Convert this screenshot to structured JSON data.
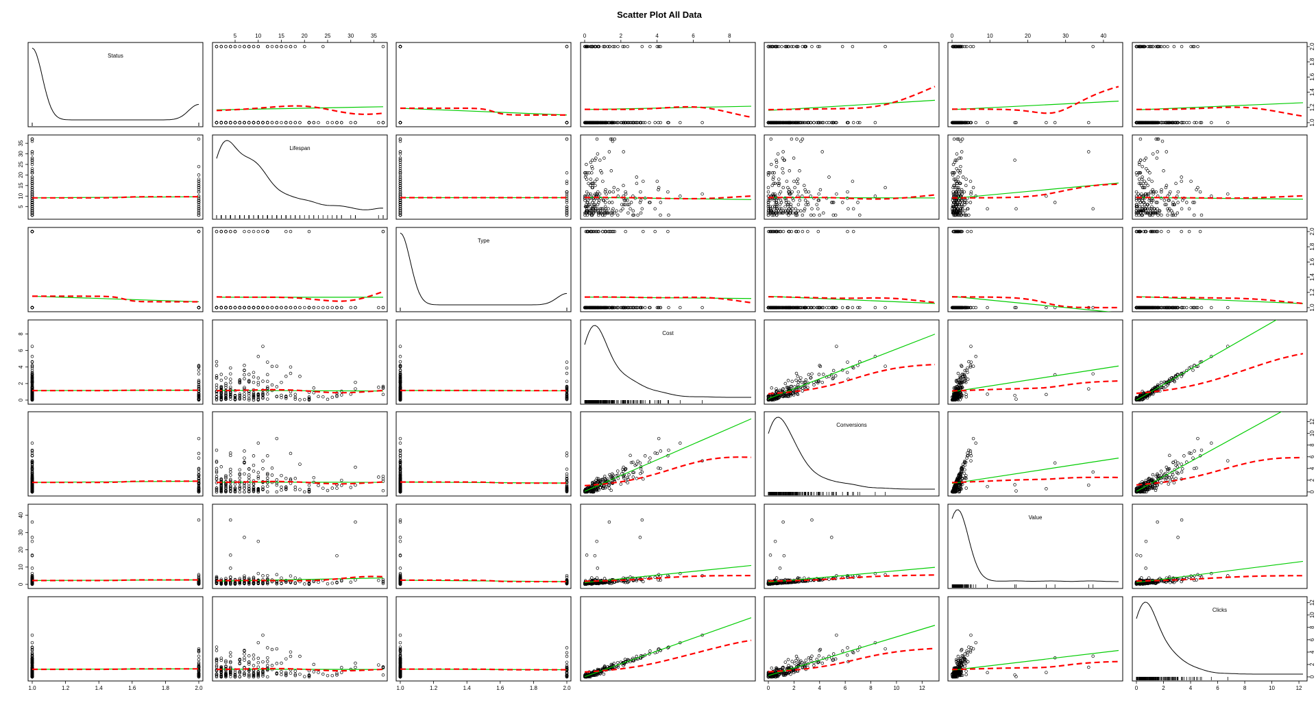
{
  "chart_data": {
    "type": "scatter",
    "title": "Scatter Plot All Data",
    "variables": [
      "Status",
      "Lifespan",
      "Type",
      "Cost",
      "Conversions",
      "Value",
      "Clicks"
    ],
    "axis_ranges": {
      "Status": [
        1,
        2
      ],
      "Lifespan": [
        1,
        37
      ],
      "Type": [
        1,
        2
      ],
      "Cost": [
        0,
        9.2
      ],
      "Conversions": [
        0,
        13
      ],
      "Value": [
        0,
        44
      ],
      "Clicks": [
        0,
        12.3
      ]
    },
    "top_ticks": {
      "Lifespan": [
        5,
        10,
        15,
        20,
        25,
        30,
        35
      ],
      "Cost": [
        0,
        2,
        4,
        6,
        8
      ],
      "Value": [
        0,
        10,
        20,
        30,
        40
      ]
    },
    "bottom_ticks": {
      "Status": [
        "1.0",
        "1.2",
        "1.4",
        "1.6",
        "1.8",
        "2.0"
      ],
      "Type": [
        "1.0",
        "1.2",
        "1.4",
        "1.6",
        "1.8",
        "2.0"
      ],
      "Conversions": [
        "0",
        "2",
        "4",
        "6",
        "8",
        "10",
        "12"
      ],
      "Clicks": [
        "0",
        "2",
        "4",
        "6",
        "8",
        "10",
        "12"
      ]
    },
    "left_ticks": {
      "Lifespan": [
        "5",
        "10",
        "15",
        "20",
        "25",
        "30",
        "35"
      ],
      "Cost": [
        "0",
        "2",
        "4",
        "6",
        "8"
      ],
      "Value": [
        "0",
        "10",
        "20",
        "30",
        "40"
      ]
    },
    "right_ticks": {
      "Status": [
        "1.0",
        "1.2",
        "1.4",
        "1.6",
        "1.8",
        "2.0"
      ],
      "Type": [
        "1.0",
        "1.2",
        "1.4",
        "1.6",
        "1.8",
        "2.0"
      ],
      "Conversions": [
        "0",
        "2",
        "4",
        "6",
        "8",
        "10",
        "12"
      ],
      "Clicks": [
        "0",
        "2",
        "4",
        "6",
        "8",
        "10",
        "12"
      ]
    },
    "line_colors": {
      "linear_fit": "#00cc00",
      "smooth_fit": "#ff0000",
      "points": "#000000"
    },
    "grid": false,
    "legend": "none"
  }
}
